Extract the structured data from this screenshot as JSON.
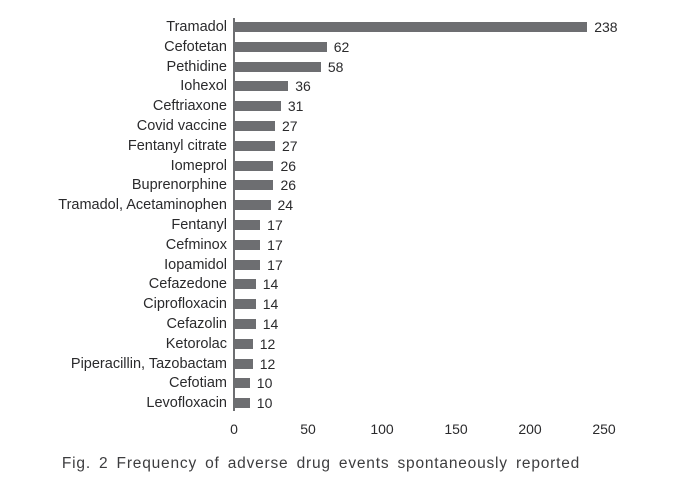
{
  "chart_data": {
    "type": "bar",
    "orientation": "horizontal",
    "title": "",
    "xlabel": "",
    "ylabel": "",
    "categories": [
      "Tramadol",
      "Cefotetan",
      "Pethidine",
      "Iohexol",
      "Ceftriaxone",
      "Covid vaccine",
      "Fentanyl citrate",
      "Iomeprol",
      "Buprenorphine",
      "Tramadol, Acetaminophen",
      "Fentanyl",
      "Cefminox",
      "Iopamidol",
      "Cefazedone",
      "Ciprofloxacin",
      "Cefazolin",
      "Ketorolac",
      "Piperacillin, Tazobactam",
      "Cefotiam",
      "Levofloxacin"
    ],
    "values": [
      238,
      62,
      58,
      36,
      31,
      27,
      27,
      26,
      26,
      24,
      17,
      17,
      17,
      14,
      14,
      14,
      12,
      12,
      10,
      10
    ],
    "xlim": [
      0,
      250
    ],
    "x_ticks": [
      0,
      50,
      100,
      150,
      200,
      250
    ],
    "value_labels_shown": true,
    "grid": "off",
    "legend": "none"
  },
  "caption": "Fig. 2 Frequency of adverse drug events spontaneously reported",
  "colors": {
    "bar": "#6d6e71",
    "axis": "#6d6e71",
    "text": "#2a2a2c",
    "caption": "#3d3d3f",
    "background": "#ffffff"
  }
}
